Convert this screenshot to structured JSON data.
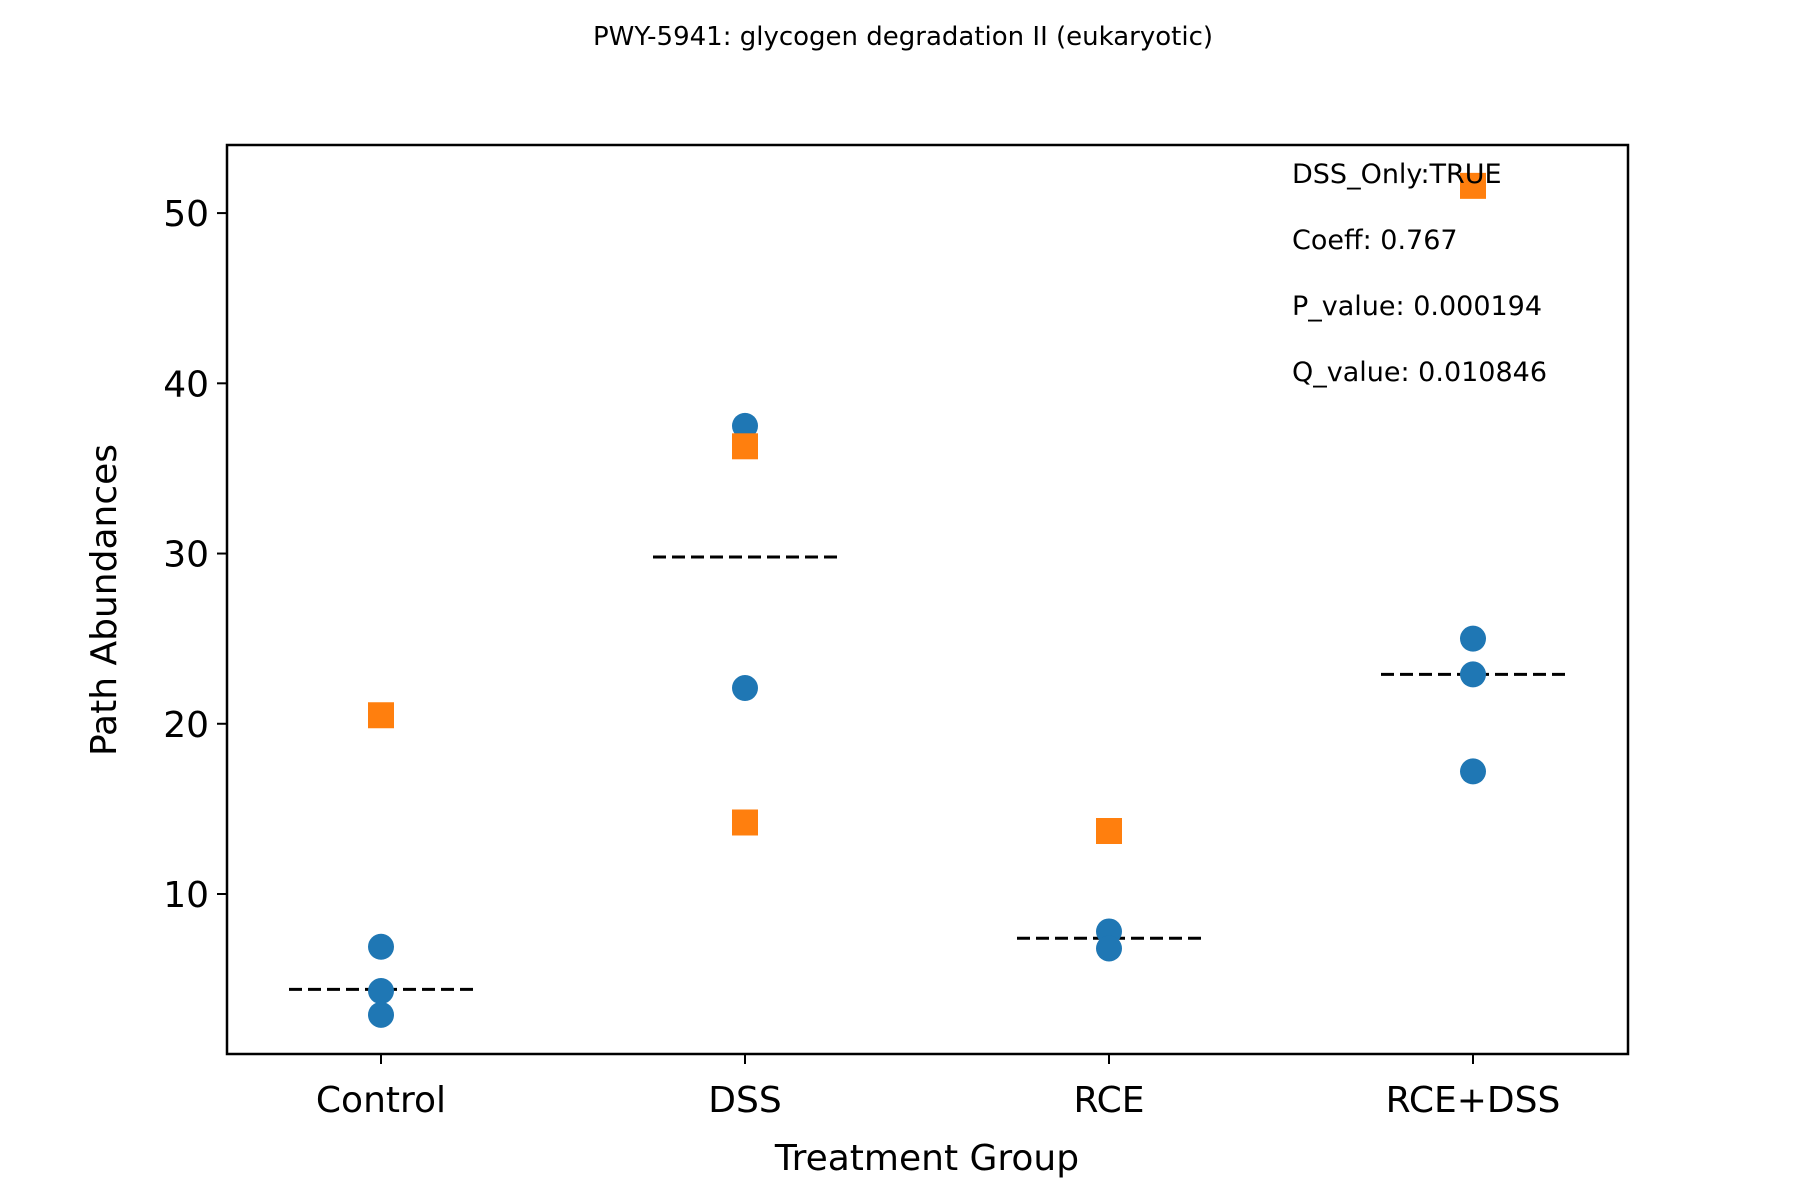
{
  "chart_data": {
    "type": "scatter",
    "title": "PWY-5941: glycogen degradation II (eukaryotic)",
    "xlabel": "Treatment Group",
    "ylabel": "Path Abundances",
    "categories": [
      "Control",
      "DSS",
      "RCE",
      "RCE+DSS"
    ],
    "ylim": [
      0.6,
      54
    ],
    "yticks": [
      10,
      20,
      30,
      40,
      50
    ],
    "grid": false,
    "series": [
      {
        "marker": "circle",
        "color": "#1f77b4",
        "points": [
          {
            "x": "Control",
            "y": 6.9
          },
          {
            "x": "Control",
            "y": 4.3
          },
          {
            "x": "Control",
            "y": 2.9
          },
          {
            "x": "DSS",
            "y": 37.5
          },
          {
            "x": "DSS",
            "y": 22.1
          },
          {
            "x": "RCE",
            "y": 7.8
          },
          {
            "x": "RCE",
            "y": 6.8
          },
          {
            "x": "RCE+DSS",
            "y": 25.0
          },
          {
            "x": "RCE+DSS",
            "y": 22.9
          },
          {
            "x": "RCE+DSS",
            "y": 17.2
          }
        ]
      },
      {
        "marker": "square",
        "color": "#ff7f0e",
        "points": [
          {
            "x": "Control",
            "y": 20.5
          },
          {
            "x": "DSS",
            "y": 36.3
          },
          {
            "x": "DSS",
            "y": 14.2
          },
          {
            "x": "RCE",
            "y": 13.7
          },
          {
            "x": "RCE+DSS",
            "y": 51.6
          }
        ]
      }
    ],
    "group_means": [
      {
        "x": "Control",
        "y": 4.4
      },
      {
        "x": "DSS",
        "y": 29.8
      },
      {
        "x": "RCE",
        "y": 7.4
      },
      {
        "x": "RCE+DSS",
        "y": 22.9
      }
    ],
    "annotations": [
      "DSS_Only:TRUE",
      "Coeff: 0.767",
      "P_value: 0.000194",
      "Q_value: 0.010846"
    ]
  }
}
